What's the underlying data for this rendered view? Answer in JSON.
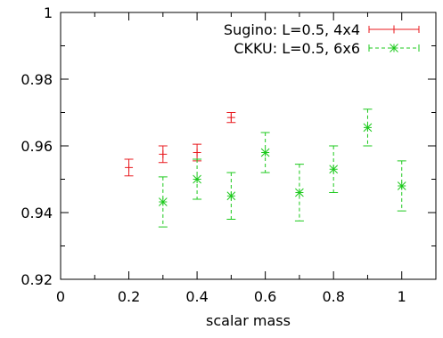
{
  "chart_data": {
    "type": "scatter",
    "xlabel": "scalar mass",
    "ylabel": "",
    "xlim": [
      0,
      1.1
    ],
    "ylim": [
      0.92,
      1.0
    ],
    "x_ticks": [
      0,
      0.2,
      0.4,
      0.6,
      0.8,
      1
    ],
    "x_tick_labels": [
      "0",
      "0.2",
      "0.4",
      "0.6",
      "0.8",
      "1"
    ],
    "y_ticks": [
      0.92,
      0.94,
      0.96,
      0.98,
      1.0
    ],
    "y_tick_labels": [
      "0.92",
      "0.94",
      "0.96",
      "0.98",
      "1"
    ],
    "grid": false,
    "legend_position": "top-right",
    "series": [
      {
        "name": "Sugino: L=0.5, 4x4",
        "color": "#e8191e",
        "marker": "plus",
        "line_style": "solid",
        "points": [
          {
            "x": 0.2,
            "y": 0.9535,
            "err": 0.0025
          },
          {
            "x": 0.3,
            "y": 0.9575,
            "err": 0.0025
          },
          {
            "x": 0.4,
            "y": 0.958,
            "err": 0.0025
          },
          {
            "x": 0.5,
            "y": 0.9685,
            "err": 0.0015
          }
        ]
      },
      {
        "name": "CKKU: L=0.5, 6x6",
        "color": "#1cc91c",
        "marker": "star",
        "line_style": "dashed",
        "points": [
          {
            "x": 0.3,
            "y": 0.9432,
            "err": 0.0075
          },
          {
            "x": 0.4,
            "y": 0.95,
            "err": 0.006
          },
          {
            "x": 0.5,
            "y": 0.945,
            "err": 0.007
          },
          {
            "x": 0.6,
            "y": 0.958,
            "err": 0.006
          },
          {
            "x": 0.7,
            "y": 0.946,
            "err": 0.0085
          },
          {
            "x": 0.8,
            "y": 0.953,
            "err": 0.007
          },
          {
            "x": 0.9,
            "y": 0.9655,
            "err": 0.0055
          },
          {
            "x": 1.0,
            "y": 0.948,
            "err": 0.0075
          }
        ]
      }
    ]
  }
}
